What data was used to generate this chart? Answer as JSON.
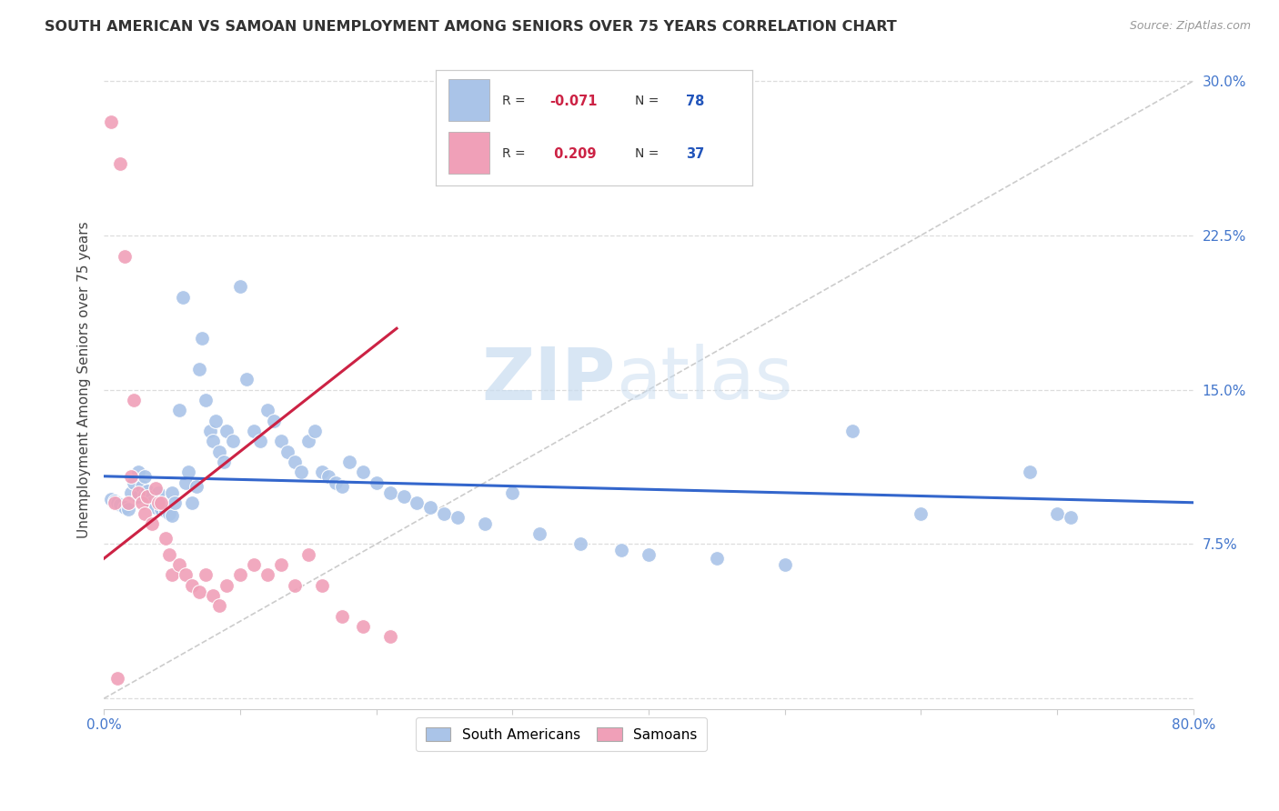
{
  "title": "SOUTH AMERICAN VS SAMOAN UNEMPLOYMENT AMONG SENIORS OVER 75 YEARS CORRELATION CHART",
  "source": "Source: ZipAtlas.com",
  "ylabel": "Unemployment Among Seniors over 75 years",
  "xlim": [
    0.0,
    0.8
  ],
  "ylim": [
    -0.005,
    0.315
  ],
  "xticks": [
    0.0,
    0.1,
    0.2,
    0.3,
    0.4,
    0.5,
    0.6,
    0.7,
    0.8
  ],
  "xticklabels": [
    "0.0%",
    "",
    "",
    "",
    "",
    "",
    "",
    "",
    "80.0%"
  ],
  "yticks": [
    0.0,
    0.075,
    0.15,
    0.225,
    0.3
  ],
  "yticklabels": [
    "",
    "7.5%",
    "15.0%",
    "22.5%",
    "30.0%"
  ],
  "blue_color": "#aac4e8",
  "pink_color": "#f0a0b8",
  "blue_edge_color": "#88aacc",
  "pink_edge_color": "#cc8899",
  "blue_line_color": "#3366cc",
  "pink_line_color": "#cc2244",
  "ref_line_color": "#cccccc",
  "watermark_zip": "ZIP",
  "watermark_atlas": "atlas",
  "legend_label1": "South Americans",
  "legend_label2": "Samoans",
  "blue_R_text": "-0.071",
  "blue_N_text": "78",
  "pink_R_text": "0.209",
  "pink_N_text": "37",
  "blue_intercept": 0.108,
  "blue_slope": -0.016,
  "pink_intercept": 0.068,
  "pink_slope": 0.52,
  "pink_line_xmax": 0.215,
  "blue_points_x": [
    0.005,
    0.008,
    0.01,
    0.012,
    0.015,
    0.018,
    0.02,
    0.022,
    0.025,
    0.025,
    0.028,
    0.03,
    0.03,
    0.032,
    0.035,
    0.038,
    0.04,
    0.04,
    0.042,
    0.045,
    0.048,
    0.05,
    0.05,
    0.052,
    0.055,
    0.058,
    0.06,
    0.062,
    0.065,
    0.068,
    0.07,
    0.072,
    0.075,
    0.078,
    0.08,
    0.082,
    0.085,
    0.088,
    0.09,
    0.095,
    0.1,
    0.105,
    0.11,
    0.115,
    0.12,
    0.125,
    0.13,
    0.135,
    0.14,
    0.145,
    0.15,
    0.155,
    0.16,
    0.165,
    0.17,
    0.175,
    0.18,
    0.19,
    0.2,
    0.21,
    0.22,
    0.23,
    0.24,
    0.25,
    0.26,
    0.28,
    0.3,
    0.32,
    0.35,
    0.38,
    0.4,
    0.45,
    0.5,
    0.55,
    0.6,
    0.68,
    0.7,
    0.71
  ],
  "blue_points_y": [
    0.097,
    0.096,
    0.095,
    0.094,
    0.093,
    0.092,
    0.1,
    0.105,
    0.11,
    0.098,
    0.103,
    0.099,
    0.108,
    0.101,
    0.095,
    0.093,
    0.097,
    0.1,
    0.092,
    0.091,
    0.09,
    0.089,
    0.1,
    0.095,
    0.14,
    0.195,
    0.105,
    0.11,
    0.095,
    0.103,
    0.16,
    0.175,
    0.145,
    0.13,
    0.125,
    0.135,
    0.12,
    0.115,
    0.13,
    0.125,
    0.2,
    0.155,
    0.13,
    0.125,
    0.14,
    0.135,
    0.125,
    0.12,
    0.115,
    0.11,
    0.125,
    0.13,
    0.11,
    0.108,
    0.105,
    0.103,
    0.115,
    0.11,
    0.105,
    0.1,
    0.098,
    0.095,
    0.093,
    0.09,
    0.088,
    0.085,
    0.1,
    0.08,
    0.075,
    0.072,
    0.07,
    0.068,
    0.065,
    0.13,
    0.09,
    0.11,
    0.09,
    0.088
  ],
  "pink_points_x": [
    0.005,
    0.008,
    0.01,
    0.012,
    0.015,
    0.018,
    0.02,
    0.022,
    0.025,
    0.028,
    0.03,
    0.032,
    0.035,
    0.038,
    0.04,
    0.042,
    0.045,
    0.048,
    0.05,
    0.055,
    0.06,
    0.065,
    0.07,
    0.075,
    0.08,
    0.085,
    0.09,
    0.1,
    0.11,
    0.12,
    0.13,
    0.14,
    0.15,
    0.16,
    0.175,
    0.19,
    0.21
  ],
  "pink_points_y": [
    0.28,
    0.095,
    0.01,
    0.26,
    0.215,
    0.095,
    0.108,
    0.145,
    0.1,
    0.095,
    0.09,
    0.098,
    0.085,
    0.102,
    0.095,
    0.095,
    0.078,
    0.07,
    0.06,
    0.065,
    0.06,
    0.055,
    0.052,
    0.06,
    0.05,
    0.045,
    0.055,
    0.06,
    0.065,
    0.06,
    0.065,
    0.055,
    0.07,
    0.055,
    0.04,
    0.035,
    0.03
  ]
}
